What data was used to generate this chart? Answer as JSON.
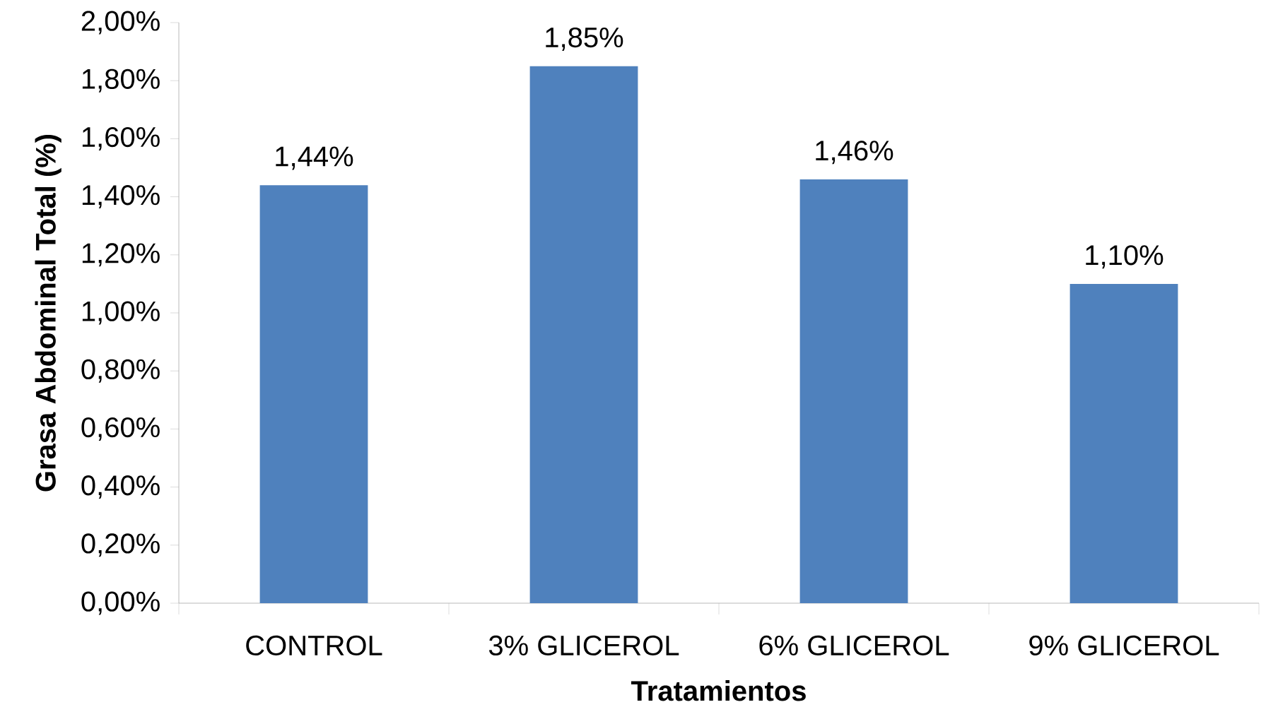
{
  "chart_data": {
    "type": "bar",
    "xlabel": "Tratamientos",
    "ylabel": "Grasa Abdominal Total (%)",
    "categories": [
      "CONTROL",
      "3% GLICEROL",
      "6% GLICEROL",
      "9% GLICEROL"
    ],
    "values": [
      1.44,
      1.85,
      1.46,
      1.1
    ],
    "value_labels": [
      "1,44%",
      "1,85%",
      "1,46%",
      "1,10%"
    ],
    "color": "#4f81bd",
    "ylim": [
      0,
      2
    ],
    "yticks": [
      {
        "value": 0,
        "label": "0,00%"
      },
      {
        "value": 0.2,
        "label": "0,20%"
      },
      {
        "value": 0.4,
        "label": "0,40%"
      },
      {
        "value": 0.6,
        "label": "0,60%"
      },
      {
        "value": 0.8,
        "label": "0,80%"
      },
      {
        "value": 1.0,
        "label": "1,00%"
      },
      {
        "value": 1.2,
        "label": "1,20%"
      },
      {
        "value": 1.4,
        "label": "1,40%"
      },
      {
        "value": 1.6,
        "label": "1,60%"
      },
      {
        "value": 1.8,
        "label": "1,80%"
      },
      {
        "value": 2.0,
        "label": "2,00%"
      }
    ],
    "grid": false
  }
}
